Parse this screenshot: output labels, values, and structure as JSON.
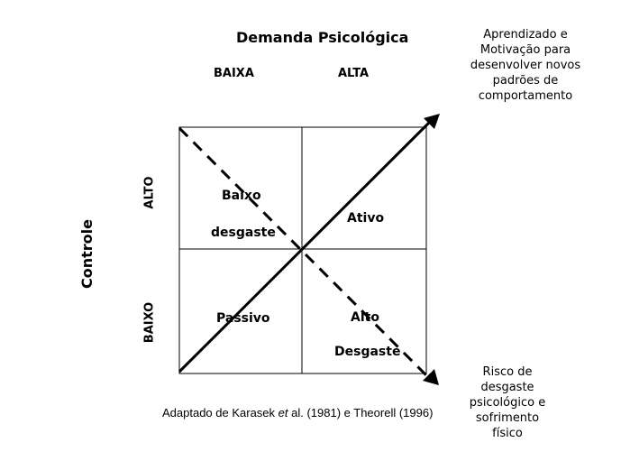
{
  "header": {
    "title": "Demanda Psicológica",
    "col_low": "BAIXA",
    "col_high": "ALTA"
  },
  "axis": {
    "y_title": "Controle",
    "row_high": "ALTO",
    "row_low": "BAIXO"
  },
  "quadrants": {
    "top_left": [
      "Baixo",
      "desgaste"
    ],
    "top_right": [
      "Ativo"
    ],
    "bottom_left": [
      "Passivo"
    ],
    "bottom_right": [
      "Alto",
      "Desgaste"
    ]
  },
  "annotations": {
    "top_right": "Aprendizado e\nMotivação para\ndesenvolver novos\npadrões de\ncomportamento",
    "bottom_right": "Risco de\ndesgaste\npsicológico e\nsofrimento\nfísico"
  },
  "source": {
    "prefix": "Adaptado de Karasek ",
    "italic": "et",
    "suffix": " al. (1981) e Theorell (1996)"
  },
  "colors": {
    "ink": "#000000",
    "background": "#ffffff"
  }
}
